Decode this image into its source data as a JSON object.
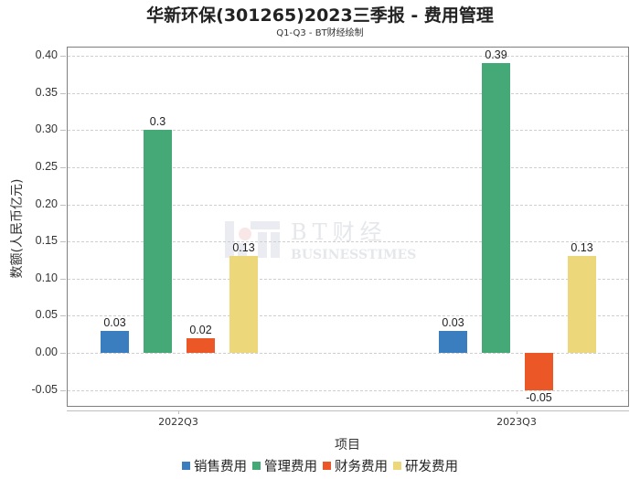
{
  "header": {
    "title": "华新环保(301265)2023三季报 - 费用管理",
    "subtitle": "Q1-Q3 - BT财经绘制"
  },
  "watermark": {
    "cn": "BT财经",
    "en": "BUSINESSTIMES"
  },
  "colors": {
    "销售费用": "#3a7ebf",
    "管理费用": "#45a877",
    "财务费用": "#ec5728",
    "研发费用": "#ecd77a"
  },
  "chart_data": {
    "type": "bar",
    "title": "华新环保(301265)2023三季报 - 费用管理",
    "subtitle": "Q1-Q3 - BT财经绘制",
    "xlabel": "项目",
    "ylabel": "数额(人民币亿元)",
    "categories": [
      "2022Q3",
      "2023Q3"
    ],
    "series": [
      {
        "name": "销售费用",
        "values": [
          0.03,
          0.03
        ],
        "color": "#3a7ebf"
      },
      {
        "name": "管理费用",
        "values": [
          0.3,
          0.39
        ],
        "color": "#45a877"
      },
      {
        "name": "财务费用",
        "values": [
          0.02,
          -0.05
        ],
        "color": "#ec5728"
      },
      {
        "name": "研发费用",
        "values": [
          0.13,
          0.13
        ],
        "color": "#ecd77a"
      }
    ],
    "data_labels": [
      [
        "0.03",
        "0.3",
        "0.02",
        "0.13"
      ],
      [
        "0.03",
        "0.39",
        "-0.05",
        "0.13"
      ]
    ],
    "yticks": [
      "0.40",
      "0.35",
      "0.30",
      "0.25",
      "0.20",
      "0.15",
      "0.10",
      "0.05",
      "0.00",
      "-0.05"
    ],
    "ylim": [
      -0.0645,
      0.412
    ],
    "grid": true,
    "legend_position": "bottom"
  }
}
